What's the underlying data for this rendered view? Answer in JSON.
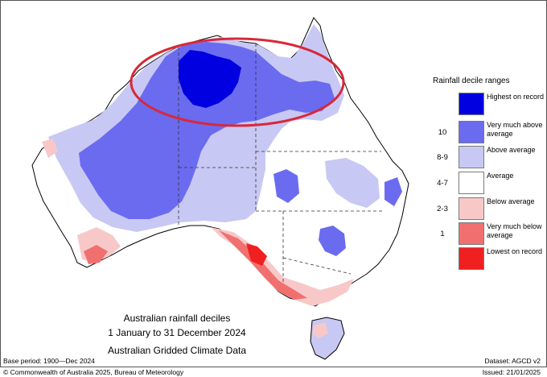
{
  "map": {
    "caption": {
      "line1": "Australian rainfall deciles",
      "line2": "1 January to 31 December 2024",
      "line3": "Australian Gridded Climate Data"
    },
    "legend": {
      "title": "Rainfall decile ranges",
      "items": [
        {
          "value": "",
          "label": "Highest on record",
          "color": "#0000e0"
        },
        {
          "value": "10",
          "label": "Very much above average",
          "color": "#6b6bf0"
        },
        {
          "value": "8-9",
          "label": "Above average",
          "color": "#c8c8f4"
        },
        {
          "value": "4-7",
          "label": "Average",
          "color": "#ffffff"
        },
        {
          "value": "2-3",
          "label": "Below average",
          "color": "#f8c8c8"
        },
        {
          "value": "1",
          "label": "Very much below average",
          "color": "#f07070"
        },
        {
          "value": "",
          "label": "Lowest on record",
          "color": "#f02020"
        }
      ]
    },
    "footer": {
      "base_period": "Base period: 1900—Dec 2024",
      "dataset": "Dataset: AGCD v2",
      "copyright": "© Commonwealth of Australia 2025, Bureau of Meteorology",
      "issued": "Issued: 21/01/2025"
    },
    "highlight_color": "#d8283a"
  }
}
